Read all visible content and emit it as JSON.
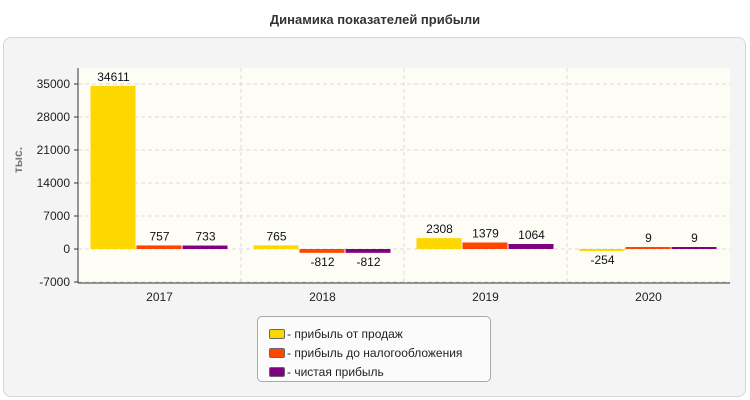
{
  "chart_data": {
    "type": "bar",
    "title": "Динамика показателей прибыли",
    "ylabel": "тыс.",
    "xlabel": "",
    "categories": [
      "2017",
      "2018",
      "2019",
      "2020"
    ],
    "series": [
      {
        "name": "- прибыль от продаж",
        "color": "#ffd700",
        "values": [
          34611,
          765,
          2308,
          -254
        ],
        "labels": [
          "34611",
          "765",
          "2308",
          "-254"
        ]
      },
      {
        "name": "- прибыль до налогообложения",
        "color": "#ff4500",
        "values": [
          757,
          -812,
          1379,
          9
        ],
        "labels": [
          "757",
          "-812",
          "1379",
          "9"
        ]
      },
      {
        "name": "- чистая прибыль",
        "color": "#800080",
        "values": [
          733,
          -812,
          1064,
          9
        ],
        "labels": [
          "733",
          "-812",
          "1064",
          "9"
        ]
      }
    ],
    "ylim": [
      -7000,
      35000
    ],
    "yticks": [
      -7000,
      0,
      7000,
      14000,
      21000,
      28000,
      35000
    ],
    "grid": true,
    "legend_position": "bottom-center"
  }
}
